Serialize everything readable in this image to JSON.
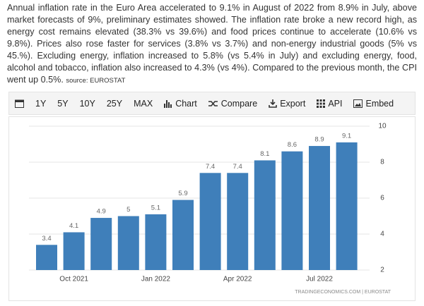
{
  "text": {
    "paragraph": "Annual inflation rate in the Euro Area accelerated to 9.1% in August of 2022 from 8.9% in July, above market forecasts of 9%, preliminary estimates showed. The inflation rate broke a new record high, as energy cost remains elevated (38.3% vs 39.6%) and food prices continue to accelerate (10.6% vs 9.8%). Prices also rose faster for services (3.8% vs 3.7%) and non-energy industrial goods (5% vs 45.%). Excluding energy, inflation increased to 5.8% (vs 5.4% in July) and excluding energy, food, alcohol and tobacco, inflation also increased to 4.3% (vs 4%). Compared to the previous month, the CPI went up 0.5%.",
    "source": "source: EUROSTAT"
  },
  "toolbar": {
    "buttons": [
      "1Y",
      "5Y",
      "10Y",
      "25Y",
      "MAX",
      "Chart",
      "Compare",
      "Export",
      "API",
      "Embed"
    ]
  },
  "chart_data": {
    "type": "bar",
    "categories": [
      null,
      "Oct 2021",
      null,
      null,
      "Jan 2022",
      null,
      null,
      "Apr 2022",
      null,
      null,
      "Jul 2022",
      null
    ],
    "values": [
      3.4,
      4.1,
      4.9,
      5,
      5.1,
      5.9,
      7.4,
      7.4,
      8.1,
      8.6,
      8.9,
      9.1
    ],
    "color": "#3f7fba",
    "ylim": [
      2,
      10
    ],
    "yticks": [
      2,
      4,
      6,
      8,
      10
    ],
    "grid": true,
    "source": "TRADINGECONOMICS.COM | EUROSTAT"
  }
}
